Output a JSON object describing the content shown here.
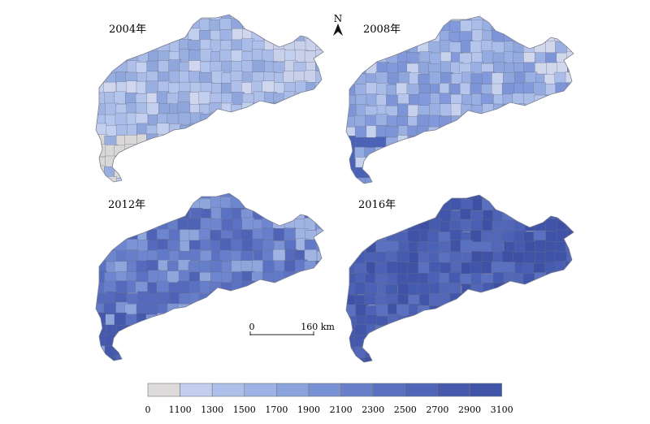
{
  "maps": [
    {
      "id": "2004",
      "title": "2004年",
      "palette": [
        "#a9bde8",
        "#9fb4e4",
        "#b4c6ec",
        "#c3cfee",
        "#97aedf",
        "#aebfe9",
        "#cfd6ee",
        "#8ea6db"
      ],
      "south_tint": "#dad7d7",
      "ne_tint": "#c8d0ea"
    },
    {
      "id": "2008",
      "title": "2008年",
      "palette": [
        "#8fa6dc",
        "#9bb0e2",
        "#a9bde8",
        "#829adb",
        "#b5c5ec",
        "#7d95d6",
        "#c6d1ee",
        "#93abe0"
      ],
      "south_tint": "#4a63b8",
      "ne_tint": "#d2d8ec"
    },
    {
      "id": "2012",
      "title": "2012年",
      "palette": [
        "#5b72c4",
        "#6279c8",
        "#6e86cf",
        "#5569bd",
        "#7c93d6",
        "#8ea6dc",
        "#677fcb",
        "#4f63b6"
      ],
      "south_tint": "#4459ad",
      "ne_tint": "#9fb4e2"
    },
    {
      "id": "2016",
      "title": "2016年",
      "palette": [
        "#4156ab",
        "#3f52a6",
        "#4a5fb3",
        "#4c62b6",
        "#5a71c1",
        "#455bb0",
        "#3d50a4",
        "#5267b8"
      ],
      "south_tint": "#4558ad",
      "ne_tint": "#3f53a8"
    }
  ],
  "north_arrow": {
    "label": "N"
  },
  "scale_bar": {
    "start_label": "0",
    "end_label": "160 km"
  },
  "legend": {
    "breaks": [
      "0",
      "1100",
      "1300",
      "1500",
      "1700",
      "1900",
      "2100",
      "2300",
      "2500",
      "2700",
      "2900",
      "3100"
    ],
    "colors": [
      "#dcdada",
      "#c3cdee",
      "#aebfea",
      "#9db2e5",
      "#8aa3dd",
      "#7890d4",
      "#6880ca",
      "#5a71c1",
      "#4f65b8",
      "#455aaf",
      "#3f53a8"
    ]
  }
}
